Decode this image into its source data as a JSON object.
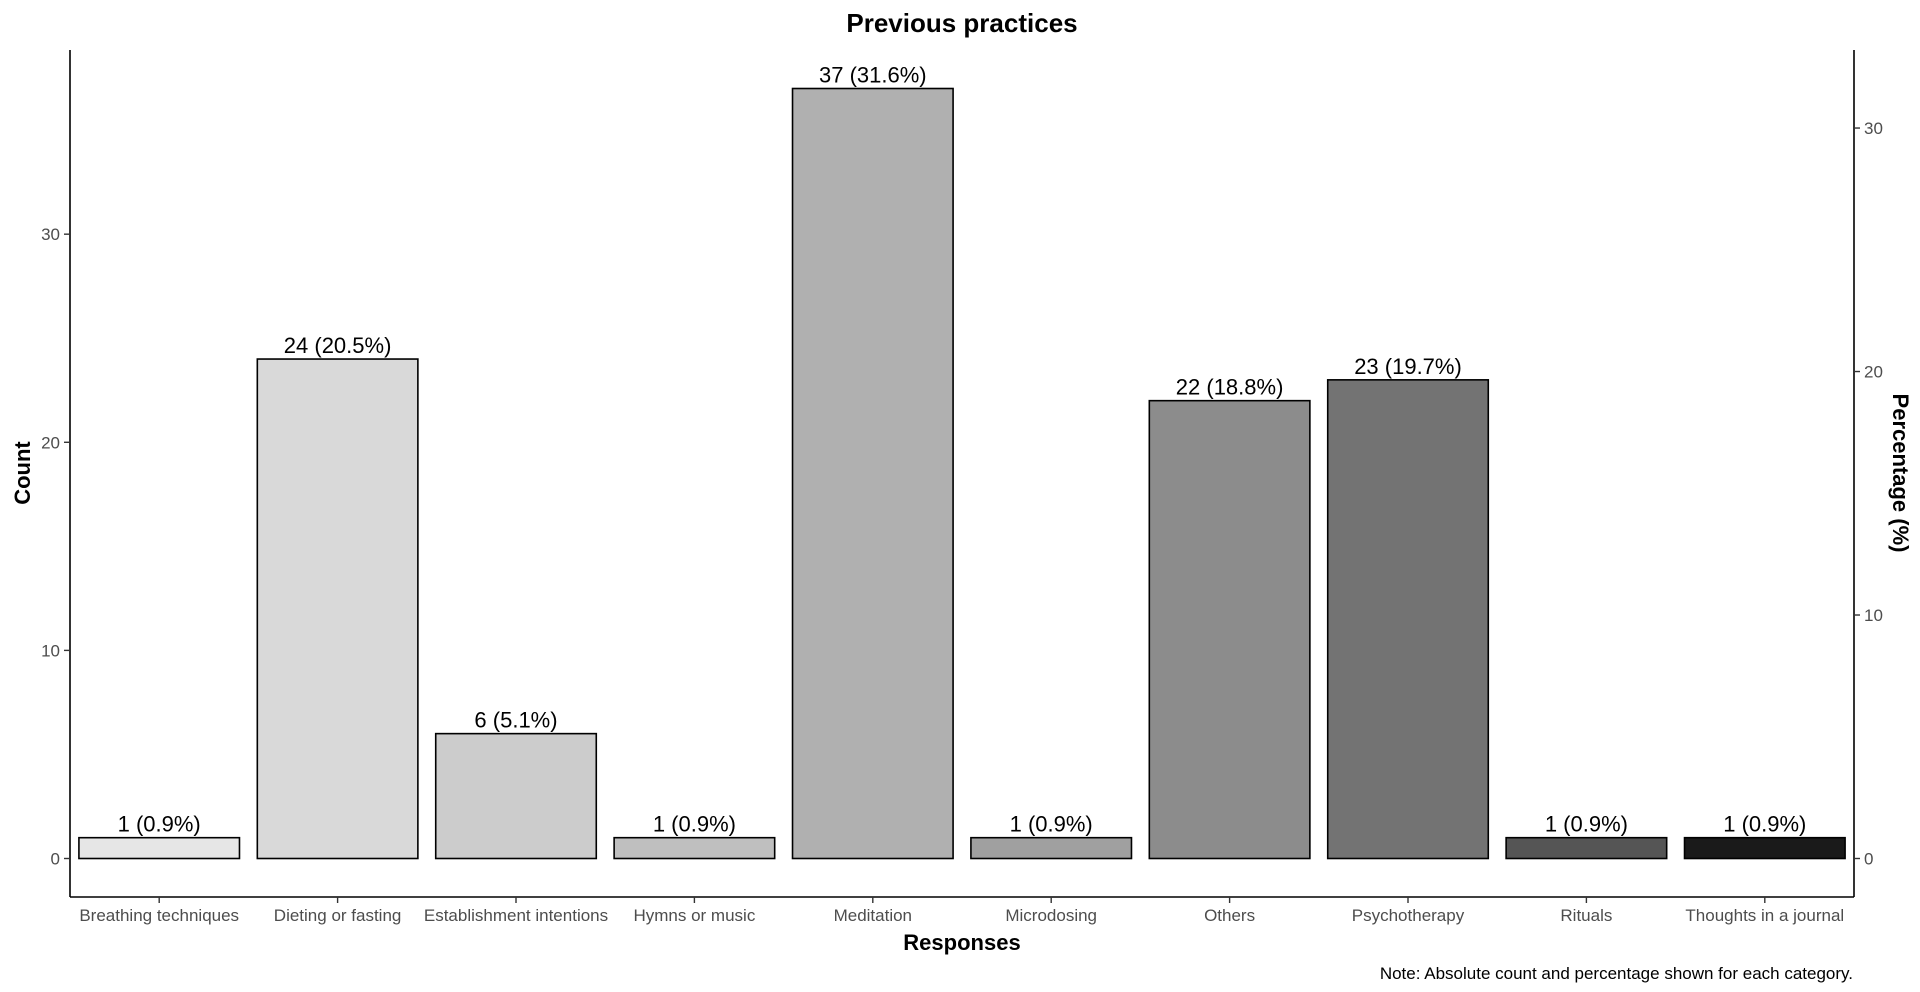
{
  "chart_data": {
    "type": "bar",
    "title": "Previous practices",
    "xlabel": "Responses",
    "ylabel": "Count",
    "y2label": "Percentage (%)",
    "note": "Note: Absolute count and percentage shown for each category.",
    "categories": [
      "Breathing techniques",
      "Dieting or fasting",
      "Establishment intentions",
      "Hymns or music",
      "Meditation",
      "Microdosing",
      "Others",
      "Psychotherapy",
      "Rituals",
      "Thoughts in a journal"
    ],
    "values": [
      1,
      24,
      6,
      1,
      37,
      1,
      22,
      23,
      1,
      1
    ],
    "labels": [
      "1 (0.9%)",
      "24 (20.5%)",
      "6 (5.1%)",
      "1 (0.9%)",
      "37 (31.6%)",
      "1 (0.9%)",
      "22 (18.8%)",
      "23 (19.7%)",
      "1 (0.9%)",
      "1 (0.9%)"
    ],
    "colors": [
      "#e6e6e6",
      "#d9d9d9",
      "#cccccc",
      "#bfbfbf",
      "#b0b0b0",
      "#a0a0a0",
      "#8c8c8c",
      "#737373",
      "#555555",
      "#1a1a1a"
    ],
    "ylim": [
      -1.85,
      38.85
    ],
    "yticks": [
      0,
      10,
      20,
      30
    ],
    "y2ticks": [
      0,
      10,
      20,
      30
    ],
    "y2_per_y": 0.8547,
    "grid": false,
    "legend": "none"
  }
}
